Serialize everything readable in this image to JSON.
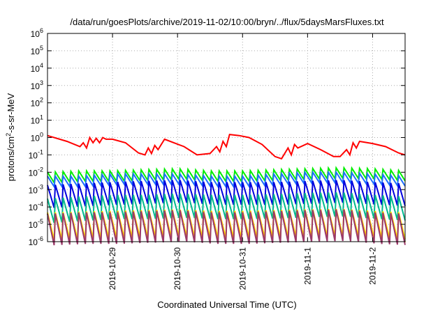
{
  "chart_data": {
    "type": "line",
    "title": "/data/run/goesPlots/archive/2019-11-02/10:00/bryn/../flux/5daysMarsFluxes.txt",
    "xlabel": "Coordinated Universal Time (UTC)",
    "ylabel": "protons/cm",
    "ylabel_sup": "2",
    "ylabel_rest": "-s-sr-MeV",
    "yscale": "log",
    "xlim": [
      0,
      5.5
    ],
    "ylim_exp": [
      -6,
      6
    ],
    "grid": true,
    "x_ticks": [
      {
        "x": 1,
        "label": "2019-10-29"
      },
      {
        "x": 2,
        "label": "2019-10-30"
      },
      {
        "x": 3,
        "label": "2019-10-31"
      },
      {
        "x": 4,
        "label": "2019-11-1"
      },
      {
        "x": 5,
        "label": "2019-11-2"
      }
    ],
    "y_ticks": [
      {
        "exp": 6,
        "base": "10",
        "sup": "6"
      },
      {
        "exp": 5,
        "base": "10",
        "sup": "5"
      },
      {
        "exp": 4,
        "base": "10",
        "sup": "4"
      },
      {
        "exp": 3,
        "base": "10",
        "sup": "3"
      },
      {
        "exp": 2,
        "base": "10",
        "sup": "2"
      },
      {
        "exp": 1,
        "base": "10",
        "sup": "1"
      },
      {
        "exp": 0,
        "base": "10",
        "sup": "0"
      },
      {
        "exp": -1,
        "base": "10",
        "sup": "-1"
      },
      {
        "exp": -2,
        "base": "10",
        "sup": "-2"
      },
      {
        "exp": -3,
        "base": "10",
        "sup": "-3"
      },
      {
        "exp": -4,
        "base": "10",
        "sup": "-4"
      },
      {
        "exp": -5,
        "base": "10",
        "sup": "-5"
      },
      {
        "exp": -6,
        "base": "10",
        "sup": "-6"
      }
    ],
    "series": [
      {
        "color": "#ff0000",
        "x": [
          0,
          0.3,
          0.5,
          0.55,
          0.6,
          0.65,
          0.7,
          0.75,
          0.8,
          0.85,
          0.9,
          1.0,
          1.2,
          1.4,
          1.5,
          1.55,
          1.6,
          1.65,
          1.7,
          1.8,
          2.1,
          2.3,
          2.5,
          2.6,
          2.65,
          2.7,
          2.75,
          2.8,
          2.95,
          3.1,
          3.3,
          3.5,
          3.6,
          3.7,
          3.75,
          3.8,
          3.85,
          4.0,
          4.2,
          4.4,
          4.5,
          4.6,
          4.65,
          4.7,
          4.75,
          4.8,
          5.0,
          5.2,
          5.4,
          5.5
        ],
        "y": [
          1.3,
          0.6,
          0.3,
          0.5,
          0.25,
          1.0,
          0.5,
          0.9,
          0.5,
          1.0,
          0.8,
          0.8,
          0.5,
          0.13,
          0.1,
          0.25,
          0.12,
          0.35,
          0.2,
          0.8,
          0.3,
          0.1,
          0.12,
          0.3,
          0.15,
          0.6,
          0.3,
          1.5,
          1.3,
          1.0,
          0.4,
          0.08,
          0.06,
          0.25,
          0.1,
          0.4,
          0.25,
          0.45,
          0.2,
          0.08,
          0.08,
          0.2,
          0.1,
          0.5,
          0.25,
          0.6,
          0.45,
          0.3,
          0.13,
          0.1
        ]
      },
      {
        "color": "#00ee00",
        "x": [
          0,
          0.5,
          1.0,
          1.5,
          2.0,
          2.5,
          3.0,
          3.5,
          4.0,
          4.5,
          5.0,
          5.5
        ],
        "y": [
          0.005,
          0.006,
          0.006,
          0.007,
          0.008,
          0.006,
          0.006,
          0.007,
          0.008,
          0.009,
          0.008,
          0.006
        ],
        "saw": 0.12,
        "amp": 2.0
      },
      {
        "color": "#1e6fff",
        "x": [
          0,
          0.5,
          1.0,
          1.5,
          2.0,
          2.5,
          3.0,
          3.5,
          4.0,
          4.5,
          5.0,
          5.5
        ],
        "y": [
          0.003,
          0.003,
          0.004,
          0.004,
          0.004,
          0.003,
          0.003,
          0.004,
          0.005,
          0.005,
          0.004,
          0.003
        ],
        "saw": 0.12,
        "amp": 2.0
      },
      {
        "color": "#0000dd",
        "x": [
          0,
          0.5,
          1.0,
          1.5,
          2.0,
          2.5,
          3.0,
          3.5,
          4.0,
          4.5,
          5.0,
          5.5
        ],
        "y": [
          0.0004,
          0.0005,
          0.0006,
          0.0007,
          0.0008,
          0.0006,
          0.0006,
          0.0006,
          0.0007,
          0.0008,
          0.0006,
          0.0005
        ],
        "saw": 0.12,
        "amp": 4.5
      },
      {
        "color": "#00b88c",
        "x": [
          0,
          0.5,
          1.0,
          1.5,
          2.0,
          2.5,
          3.0,
          3.5,
          4.0,
          4.5,
          5.0,
          5.5
        ],
        "y": [
          6e-05,
          8e-05,
          0.0001,
          0.0001,
          0.00012,
          0.0001,
          0.0001,
          0.00011,
          0.00013,
          0.00014,
          0.0001,
          8e-05
        ],
        "saw": 0.12,
        "amp": 5.0
      },
      {
        "color": "#ffff00",
        "x": [
          0,
          0.5,
          1.0,
          1.5,
          2.0,
          2.5,
          3.0,
          3.5,
          4.0,
          4.5,
          5.0,
          5.5
        ],
        "y": [
          8e-06,
          9e-06,
          1e-05,
          1.1e-05,
          1.2e-05,
          1e-05,
          1e-05,
          1.1e-05,
          1.2e-05,
          1.3e-05,
          1e-05,
          8e-06
        ],
        "saw": 0.12,
        "amp": 6.0
      },
      {
        "color": "#ffa500",
        "x": [
          0,
          0.5,
          1.0,
          1.5,
          2.0,
          2.5,
          3.0,
          3.5,
          4.0,
          4.5,
          5.0,
          5.5
        ],
        "y": [
          6e-06,
          7e-06,
          8e-06,
          9e-06,
          1e-05,
          8e-06,
          8e-06,
          9e-06,
          1e-05,
          1.1e-05,
          8e-06,
          6e-06
        ],
        "saw": 0.12,
        "amp": 7.0
      },
      {
        "color": "#9b3a6a",
        "x": [
          0,
          0.5,
          1.0,
          1.5,
          2.0,
          2.5,
          3.0,
          3.5,
          4.0,
          4.5,
          5.0,
          5.5
        ],
        "y": [
          5e-06,
          6e-06,
          6e-06,
          7e-06,
          8e-06,
          6e-06,
          6e-06,
          7e-06,
          8e-06,
          9e-06,
          6e-06,
          5e-06
        ],
        "saw": 0.12,
        "amp": 8.0
      }
    ]
  }
}
